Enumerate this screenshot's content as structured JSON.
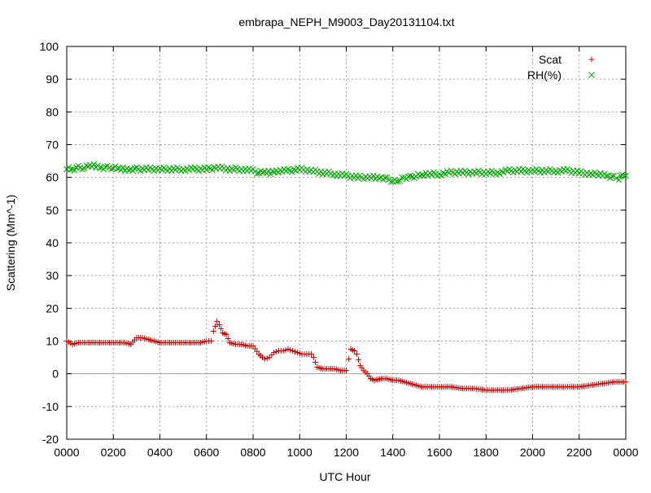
{
  "chart_data": {
    "type": "scatter",
    "title": "embrapa_NEPH_M9003_Day20131104.txt",
    "xlabel": "UTC Hour",
    "ylabel": "Scattering (Mm^-1)",
    "xlim": [
      0,
      24
    ],
    "ylim": [
      -20,
      100
    ],
    "grid": true,
    "legend": "top-right",
    "x_ticks": [
      "0000",
      "0200",
      "0400",
      "0600",
      "0800",
      "1000",
      "1200",
      "1400",
      "1600",
      "1800",
      "2000",
      "2200",
      "0000"
    ],
    "y_ticks": [
      "-20",
      "-10",
      "0",
      "10",
      "20",
      "30",
      "40",
      "50",
      "60",
      "70",
      "80",
      "90",
      "100"
    ],
    "series": [
      {
        "name": "Scat",
        "color": "#cc0000",
        "marker": "plus",
        "x": [
          0.0,
          0.25,
          0.5,
          0.75,
          1.0,
          1.25,
          1.5,
          1.75,
          2.0,
          2.25,
          2.5,
          2.75,
          3.0,
          3.25,
          3.5,
          3.75,
          4.0,
          4.25,
          4.5,
          4.75,
          5.0,
          5.25,
          5.5,
          5.75,
          6.0,
          6.2,
          6.3,
          6.45,
          6.55,
          6.7,
          6.85,
          7.0,
          7.25,
          7.5,
          7.75,
          8.0,
          8.25,
          8.4,
          8.5,
          8.7,
          8.9,
          9.1,
          9.3,
          9.5,
          9.7,
          9.9,
          10.1,
          10.3,
          10.5,
          10.6,
          10.75,
          11.0,
          11.25,
          11.5,
          11.75,
          12.0,
          12.1,
          12.2,
          12.35,
          12.45,
          12.6,
          12.75,
          12.9,
          13.05,
          13.2,
          13.5,
          13.75,
          14.0,
          14.25,
          14.5,
          14.75,
          15.0,
          15.25,
          15.5,
          15.75,
          16.0,
          16.5,
          17.0,
          17.5,
          18.0,
          18.5,
          19.0,
          19.5,
          20.0,
          20.5,
          21.0,
          21.5,
          22.0,
          22.5,
          23.0,
          23.5,
          24.0
        ],
        "values": [
          10,
          9,
          9.5,
          9.5,
          9.5,
          9.5,
          9.5,
          9.5,
          9.5,
          9.5,
          9.5,
          9,
          11,
          11,
          10.5,
          10,
          9.5,
          9.5,
          9.5,
          9.5,
          9.5,
          9.5,
          9.5,
          9.5,
          10,
          10,
          13,
          16,
          15,
          12.5,
          12,
          9.5,
          9,
          9,
          8.5,
          8.5,
          6,
          5,
          4.5,
          5,
          6.5,
          7,
          7,
          7.5,
          7,
          6.5,
          6,
          6,
          6,
          5,
          2,
          1.5,
          1.5,
          1.5,
          1,
          1,
          4.5,
          7.5,
          7,
          6,
          2.5,
          1,
          0,
          -1.5,
          -2,
          -1.5,
          -1.5,
          -2,
          -2,
          -2.5,
          -3,
          -3.5,
          -4,
          -4,
          -4,
          -4,
          -4,
          -4.5,
          -4.5,
          -5,
          -5,
          -5,
          -4.5,
          -4,
          -4,
          -4,
          -4,
          -4,
          -3.5,
          -3,
          -2.5,
          -2.5
        ]
      },
      {
        "name": "RH(%)",
        "color": "#00aa00",
        "marker": "cross",
        "x": [
          0.0,
          0.25,
          0.5,
          0.75,
          1.0,
          1.25,
          1.5,
          1.75,
          2.0,
          2.25,
          2.5,
          2.75,
          3.0,
          3.5,
          4.0,
          4.5,
          5.0,
          5.5,
          6.0,
          6.5,
          7.0,
          7.5,
          8.0,
          8.25,
          8.5,
          8.75,
          9.0,
          9.5,
          10.0,
          10.5,
          11.0,
          11.5,
          12.0,
          12.5,
          13.0,
          13.25,
          13.5,
          13.75,
          14.0,
          14.15,
          14.3,
          14.5,
          14.75,
          15.0,
          15.25,
          15.5,
          16.0,
          16.5,
          17.0,
          17.5,
          18.0,
          18.5,
          19.0,
          19.5,
          20.0,
          20.5,
          21.0,
          21.5,
          22.0,
          22.5,
          23.0,
          23.25,
          23.5,
          23.7,
          23.85,
          24.0
        ],
        "values": [
          63,
          62.5,
          63,
          63,
          63.5,
          63.5,
          63,
          63,
          63,
          62.5,
          62.5,
          62.5,
          62.5,
          62.5,
          62.5,
          62.5,
          62.5,
          62.5,
          62.5,
          63,
          62.5,
          62.5,
          62,
          61.5,
          61.5,
          61.5,
          62,
          62,
          62.5,
          62,
          61.5,
          61,
          60.5,
          60,
          60,
          60,
          60,
          59.5,
          59,
          58.5,
          59.5,
          60,
          60,
          60.5,
          60.5,
          61,
          61,
          61.5,
          61.5,
          61.5,
          61.5,
          61.5,
          62,
          62,
          62,
          62,
          62,
          62,
          61.5,
          61,
          61,
          60.5,
          60,
          59.5,
          60.5,
          60.5
        ]
      }
    ]
  }
}
